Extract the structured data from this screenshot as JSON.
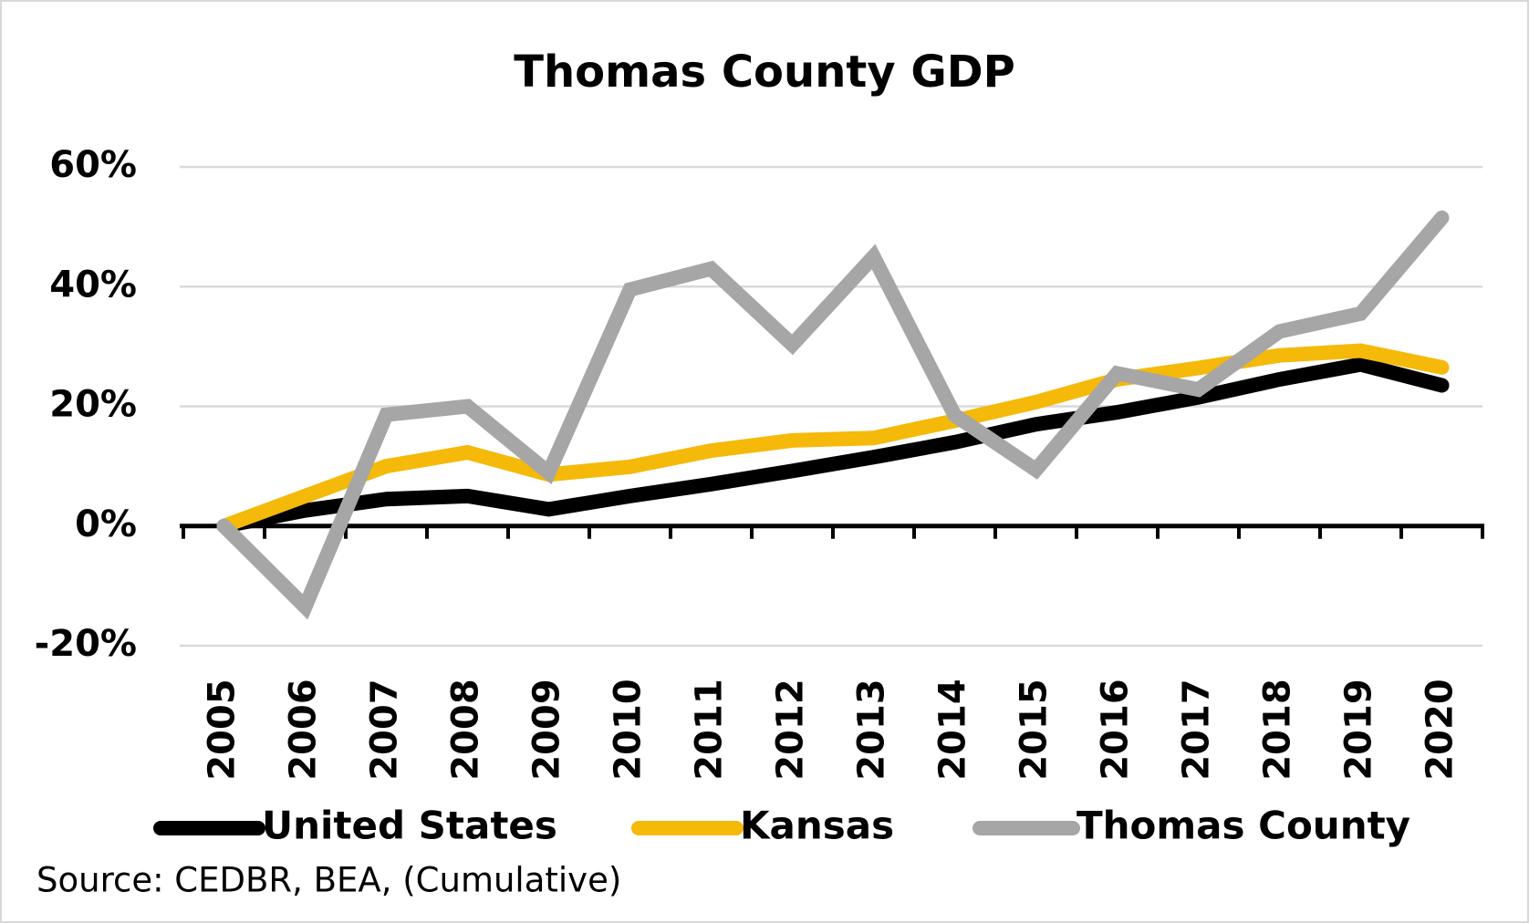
{
  "chart_data": {
    "type": "line",
    "title": "Thomas County GDP",
    "categories": [
      "2005",
      "2006",
      "2007",
      "2008",
      "2009",
      "2010",
      "2011",
      "2012",
      "2013",
      "2014",
      "2015",
      "2016",
      "2017",
      "2018",
      "2019",
      "2020"
    ],
    "series": [
      {
        "name": "United States",
        "color": "#000000",
        "values": [
          0,
          2.6,
          4.5,
          5,
          2.8,
          5,
          7,
          9.2,
          11.5,
          14,
          17,
          19,
          21.5,
          24.5,
          27,
          23.5
        ]
      },
      {
        "name": "Kansas",
        "color": "#f5b90a",
        "values": [
          0,
          5,
          10,
          12.3,
          8.6,
          9.9,
          12.6,
          14.3,
          14.7,
          17.6,
          20.7,
          24.5,
          26.4,
          28.5,
          29.3,
          26.5
        ]
      },
      {
        "name": "Thomas County",
        "color": "#a6a6a6",
        "values": [
          0,
          -13.5,
          18.6,
          20,
          8.9,
          39.5,
          43,
          30.3,
          45,
          18.5,
          9.4,
          25.5,
          22.8,
          32.5,
          35.5,
          51.5
        ]
      }
    ],
    "ylim": [
      -20,
      60
    ],
    "yticks": [
      {
        "value": -20,
        "label": "-20%"
      },
      {
        "value": 0,
        "label": "0%"
      },
      {
        "value": 20,
        "label": "20%"
      },
      {
        "value": 40,
        "label": "40%"
      },
      {
        "value": 60,
        "label": "60%"
      }
    ],
    "grid": true,
    "legend": "bottom",
    "source": "Source: CEDBR, BEA, (Cumulative)"
  }
}
